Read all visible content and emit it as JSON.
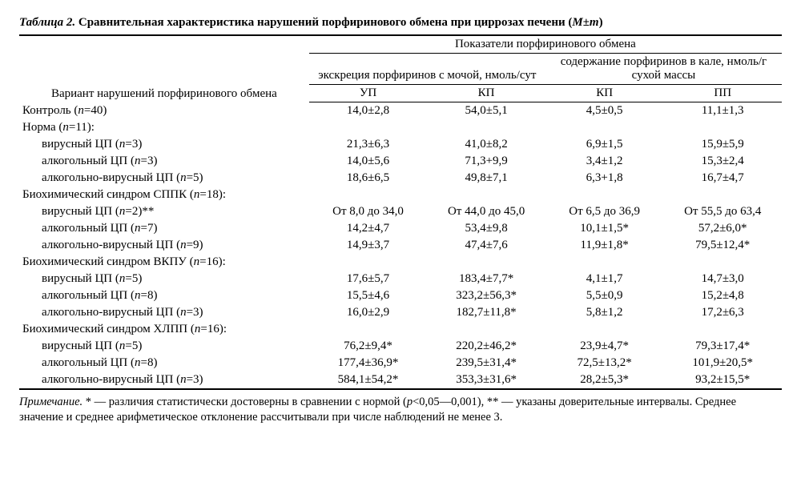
{
  "caption": {
    "label": "Таблица 2.",
    "title": "Сравнительная характеристика нарушений порфиринового обмена при циррозах печени (",
    "mpm": "M±m",
    "close": ")"
  },
  "columns": {
    "rowheader": "Вариант нарушений порфиринового обмена",
    "group_top": "Показатели порфиринового обмена",
    "sub_left": "экскреция порфиринов с мочой, нмоль/сут",
    "sub_right": "содержание порфиринов в кале, нмоль/г сухой массы",
    "c1": "УП",
    "c2": "КП",
    "c3": "КП",
    "c4": "ПП"
  },
  "widths": {
    "c0": "38%",
    "cv": "15.5%"
  },
  "rows": [
    {
      "label_pre": "Контроль (",
      "n_label": "n",
      "label_post": "=40)",
      "indent": false,
      "v": [
        "14,0±2,8",
        "54,0±5,1",
        "4,5±0,5",
        "11,1±1,3"
      ]
    },
    {
      "label_pre": "Норма (",
      "n_label": "n",
      "label_post": "=11):",
      "indent": false,
      "group": true
    },
    {
      "label_pre": "вирусный ЦП (",
      "n_label": "n",
      "label_post": "=3)",
      "indent": true,
      "v": [
        "21,3±6,3",
        "41,0±8,2",
        "6,9±1,5",
        "15,9±5,9"
      ]
    },
    {
      "label_pre": "алкогольный ЦП (",
      "n_label": "n",
      "label_post": "=3)",
      "indent": true,
      "v": [
        "14,0±5,6",
        "71,3+9,9",
        "3,4±1,2",
        "15,3±2,4"
      ]
    },
    {
      "label_pre": "алкогольно-вирусный ЦП (",
      "n_label": "n",
      "label_post": "=5)",
      "indent": true,
      "v": [
        "18,6±6,5",
        "49,8±7,1",
        "6,3+1,8",
        "16,7±4,7"
      ]
    },
    {
      "label_pre": "Биохимический синдром СППК (",
      "n_label": "n",
      "label_post": "=18):",
      "indent": false,
      "group": true
    },
    {
      "label_pre": "вирусный ЦП (",
      "n_label": "n",
      "label_post": "=2)**",
      "indent": true,
      "v": [
        "От 8,0 до 34,0",
        "От 44,0 до 45,0",
        "От 6,5 до 36,9",
        "От 55,5 до 63,4"
      ]
    },
    {
      "label_pre": "алкогольный ЦП (",
      "n_label": "n",
      "label_post": "=7)",
      "indent": true,
      "v": [
        "14,2±4,7",
        "53,4±9,8",
        "10,1±1,5*",
        "57,2±6,0*"
      ]
    },
    {
      "label_pre": "алкогольно-вирусный ЦП (",
      "n_label": "n",
      "label_post": "=9)",
      "indent": true,
      "v": [
        "14,9±3,7",
        "47,4±7,6",
        "11,9±1,8*",
        "79,5±12,4*"
      ]
    },
    {
      "label_pre": "Биохимический синдром ВКПУ (",
      "n_label": "n",
      "label_post": "=16):",
      "indent": false,
      "group": true
    },
    {
      "label_pre": "вирусный ЦП (",
      "n_label": "n",
      "label_post": "=5)",
      "indent": true,
      "v": [
        "17,6±5,7",
        "183,4±7,7*",
        "4,1±1,7",
        "14,7±3,0"
      ]
    },
    {
      "label_pre": "алкогольный ЦП (",
      "n_label": "n",
      "label_post": "=8)",
      "indent": true,
      "v": [
        "15,5±4,6",
        "323,2±56,3*",
        "5,5±0,9",
        "15,2±4,8"
      ]
    },
    {
      "label_pre": "алкогольно-вирусный ЦП (",
      "n_label": "n",
      "label_post": "=3)",
      "indent": true,
      "v": [
        "16,0±2,9",
        "182,7±11,8*",
        "5,8±1,2",
        "17,2±6,3"
      ]
    },
    {
      "label_pre": "Биохимический синдром ХЛПП (",
      "n_label": "n",
      "label_post": "=16):",
      "indent": false,
      "group": true
    },
    {
      "label_pre": "вирусный ЦП (",
      "n_label": "n",
      "label_post": "=5)",
      "indent": true,
      "v": [
        "76,2±9,4*",
        "220,2±46,2*",
        "23,9±4,7*",
        "79,3±17,4*"
      ]
    },
    {
      "label_pre": "алкогольный ЦП (",
      "n_label": "n",
      "label_post": "=8)",
      "indent": true,
      "v": [
        "177,4±36,9*",
        "239,5±31,4*",
        "72,5±13,2*",
        "101,9±20,5*"
      ]
    },
    {
      "label_pre": "алкогольно-вирусный ЦП (",
      "n_label": "n",
      "label_post": "=3)",
      "indent": true,
      "v": [
        "584,1±54,2*",
        "353,3±31,6*",
        "28,2±5,3*",
        "93,2±15,5*"
      ]
    }
  ],
  "note": {
    "label": "Примечание.",
    "t1": " * — различия статистически достоверны в сравнении с нормой (",
    "pval": "p",
    "t2": "<0,05—0,001), ** — указаны доверительные интервалы. Среднее значение и среднее арифметическое отклонение рассчитывали при числе наблюдений не менее 3."
  }
}
